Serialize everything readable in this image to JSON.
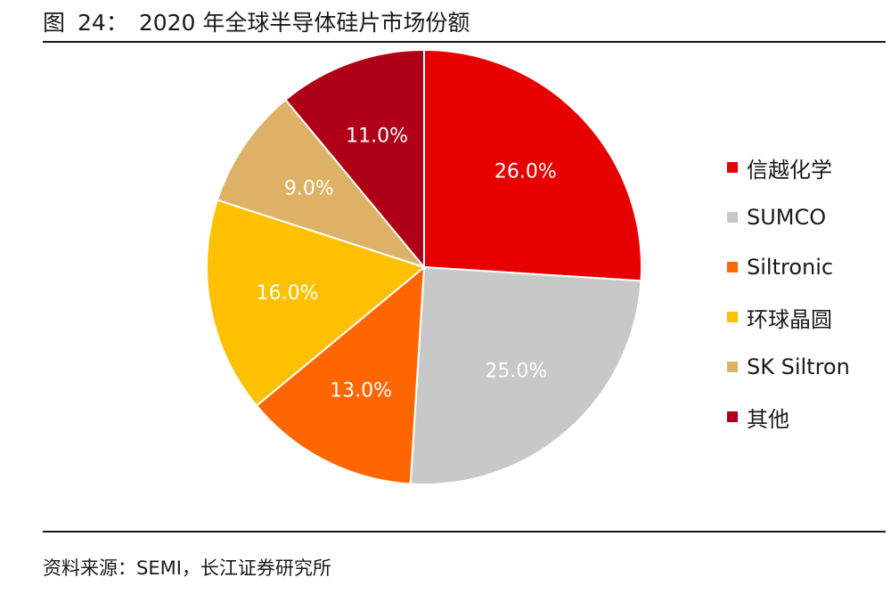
{
  "header": {
    "figure_prefix": "图",
    "figure_number": "24：",
    "title_text": "2020 年全球半导体硅片市场份额"
  },
  "chart_data": {
    "type": "pie",
    "title": "2020 年全球半导体硅片市场份额",
    "categories": [
      "信越化学",
      "SUMCO",
      "Siltronic",
      "环球晶圆",
      "SK Siltron",
      "其他"
    ],
    "values": [
      26.0,
      25.0,
      13.0,
      16.0,
      9.0,
      11.0
    ],
    "data_labels": [
      "26.0%",
      "25.0%",
      "13.0%",
      "16.0%",
      "9.0%",
      "11.0%"
    ],
    "colors": [
      "#E60000",
      "#C8C8C8",
      "#FF6600",
      "#FFC000",
      "#DDB266",
      "#B00018"
    ],
    "legend_position": "right",
    "start_angle": "12 o'clock, clockwise"
  },
  "footer": {
    "source_text": "资料来源：SEMI，长江证券研究所"
  }
}
